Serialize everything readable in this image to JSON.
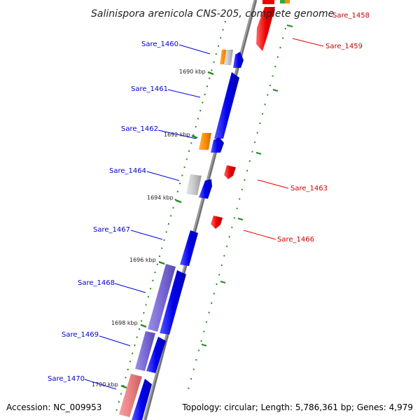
{
  "title": "Salinispora arenicola CNS-205, complete genome",
  "accession": "Accession: NC_009953",
  "summary": "Topology: circular; Length: 5,786,361 bp; Genes: 4,979",
  "genes": {
    "Sare_1458": "Sare_1458",
    "Sare_1459": "Sare_1459",
    "Sare_1460": "Sare_1460",
    "Sare_1461": "Sare_1461",
    "Sare_1462": "Sare_1462",
    "Sare_1463": "Sare_1463",
    "Sare_1464": "Sare_1464",
    "Sare_1466": "Sare_1466",
    "Sare_1467": "Sare_1467",
    "Sare_1468": "Sare_1468",
    "Sare_1469": "Sare_1469",
    "Sare_1470": "Sare_1470"
  },
  "ticks": [
    "1690 kbp",
    "1692 kbp",
    "1694 kbp",
    "1696 kbp",
    "1698 kbp",
    "1700 kbp"
  ],
  "colors": {
    "plus_strand": "#0000ee",
    "minus_strand": "#ee0000",
    "plus_label": "#0000cc",
    "minus_label": "#cc0000",
    "tick": "#228b22",
    "backbone": "#7a7a7a"
  }
}
